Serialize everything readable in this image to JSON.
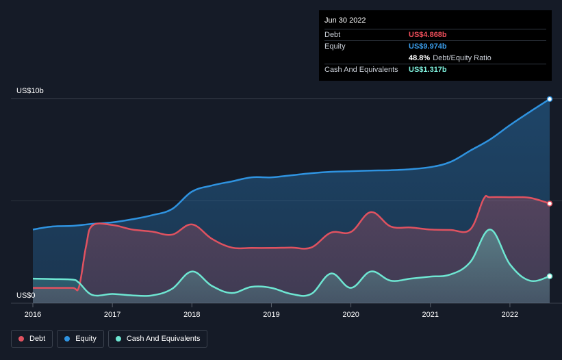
{
  "colors": {
    "background": "#151b27",
    "debt": "#e05260",
    "equity": "#2f93e0",
    "cash": "#6ee6d2",
    "grid": "#3a414d"
  },
  "tooltip": {
    "date": "Jun 30 2022",
    "rows": [
      {
        "name": "Debt",
        "value": "US$4.868b",
        "color": "#ef4e5a"
      },
      {
        "name": "Equity",
        "value": "US$9.974b",
        "color": "#3a9be8"
      },
      {
        "name": "",
        "value": "48.8%",
        "extra": "Debt/Equity Ratio",
        "color": "#ffffff"
      },
      {
        "name": "Cash And Equivalents",
        "value": "US$1.317b",
        "color": "#7ef0dc"
      }
    ]
  },
  "legend": [
    {
      "label": "Debt",
      "color": "#e05260"
    },
    {
      "label": "Equity",
      "color": "#2f93e0"
    },
    {
      "label": "Cash And Equivalents",
      "color": "#6ee6d2"
    }
  ],
  "chart_data": {
    "type": "area",
    "ylim": [
      0,
      10
    ],
    "y_tick_labels": [
      {
        "value": 10,
        "label": "US$10b"
      },
      {
        "value": 0,
        "label": "US$0"
      }
    ],
    "x_ticks": [
      2016,
      2017,
      2018,
      2019,
      2020,
      2021,
      2022
    ],
    "xlim": [
      2016.0,
      2022.5
    ],
    "series": [
      {
        "name": "Equity",
        "points": [
          [
            2016.0,
            3.6
          ],
          [
            2016.25,
            3.75
          ],
          [
            2016.5,
            3.78
          ],
          [
            2016.75,
            3.88
          ],
          [
            2017.0,
            3.95
          ],
          [
            2017.25,
            4.1
          ],
          [
            2017.5,
            4.3
          ],
          [
            2017.75,
            4.6
          ],
          [
            2018.0,
            5.45
          ],
          [
            2018.25,
            5.75
          ],
          [
            2018.5,
            5.95
          ],
          [
            2018.75,
            6.15
          ],
          [
            2019.0,
            6.15
          ],
          [
            2019.25,
            6.25
          ],
          [
            2019.5,
            6.35
          ],
          [
            2019.75,
            6.42
          ],
          [
            2020.0,
            6.45
          ],
          [
            2020.25,
            6.48
          ],
          [
            2020.5,
            6.5
          ],
          [
            2020.75,
            6.55
          ],
          [
            2021.0,
            6.65
          ],
          [
            2021.25,
            6.9
          ],
          [
            2021.5,
            7.45
          ],
          [
            2021.75,
            8.0
          ],
          [
            2022.0,
            8.7
          ],
          [
            2022.25,
            9.35
          ],
          [
            2022.5,
            9.974
          ]
        ]
      },
      {
        "name": "Debt",
        "points": [
          [
            2016.0,
            0.75
          ],
          [
            2016.25,
            0.75
          ],
          [
            2016.5,
            0.75
          ],
          [
            2016.58,
            0.8
          ],
          [
            2016.67,
            2.8
          ],
          [
            2016.75,
            3.8
          ],
          [
            2017.0,
            3.82
          ],
          [
            2017.25,
            3.6
          ],
          [
            2017.5,
            3.5
          ],
          [
            2017.75,
            3.35
          ],
          [
            2018.0,
            3.85
          ],
          [
            2018.25,
            3.15
          ],
          [
            2018.5,
            2.72
          ],
          [
            2018.75,
            2.7
          ],
          [
            2019.0,
            2.7
          ],
          [
            2019.25,
            2.72
          ],
          [
            2019.5,
            2.72
          ],
          [
            2019.75,
            3.45
          ],
          [
            2020.0,
            3.48
          ],
          [
            2020.25,
            4.45
          ],
          [
            2020.5,
            3.75
          ],
          [
            2020.75,
            3.7
          ],
          [
            2021.0,
            3.6
          ],
          [
            2021.25,
            3.58
          ],
          [
            2021.5,
            3.6
          ],
          [
            2021.67,
            5.1
          ],
          [
            2021.75,
            5.18
          ],
          [
            2022.0,
            5.18
          ],
          [
            2022.25,
            5.15
          ],
          [
            2022.5,
            4.868
          ]
        ]
      },
      {
        "name": "Cash And Equivalents",
        "points": [
          [
            2016.0,
            1.2
          ],
          [
            2016.25,
            1.18
          ],
          [
            2016.5,
            1.15
          ],
          [
            2016.58,
            1.0
          ],
          [
            2016.75,
            0.4
          ],
          [
            2017.0,
            0.45
          ],
          [
            2017.25,
            0.38
          ],
          [
            2017.5,
            0.38
          ],
          [
            2017.75,
            0.7
          ],
          [
            2018.0,
            1.55
          ],
          [
            2018.25,
            0.85
          ],
          [
            2018.5,
            0.5
          ],
          [
            2018.75,
            0.8
          ],
          [
            2019.0,
            0.75
          ],
          [
            2019.25,
            0.45
          ],
          [
            2019.5,
            0.45
          ],
          [
            2019.75,
            1.45
          ],
          [
            2020.0,
            0.75
          ],
          [
            2020.25,
            1.55
          ],
          [
            2020.5,
            1.1
          ],
          [
            2020.75,
            1.2
          ],
          [
            2021.0,
            1.3
          ],
          [
            2021.25,
            1.4
          ],
          [
            2021.5,
            2.0
          ],
          [
            2021.75,
            3.6
          ],
          [
            2022.0,
            1.9
          ],
          [
            2022.25,
            1.1
          ],
          [
            2022.5,
            1.317
          ]
        ]
      }
    ]
  }
}
